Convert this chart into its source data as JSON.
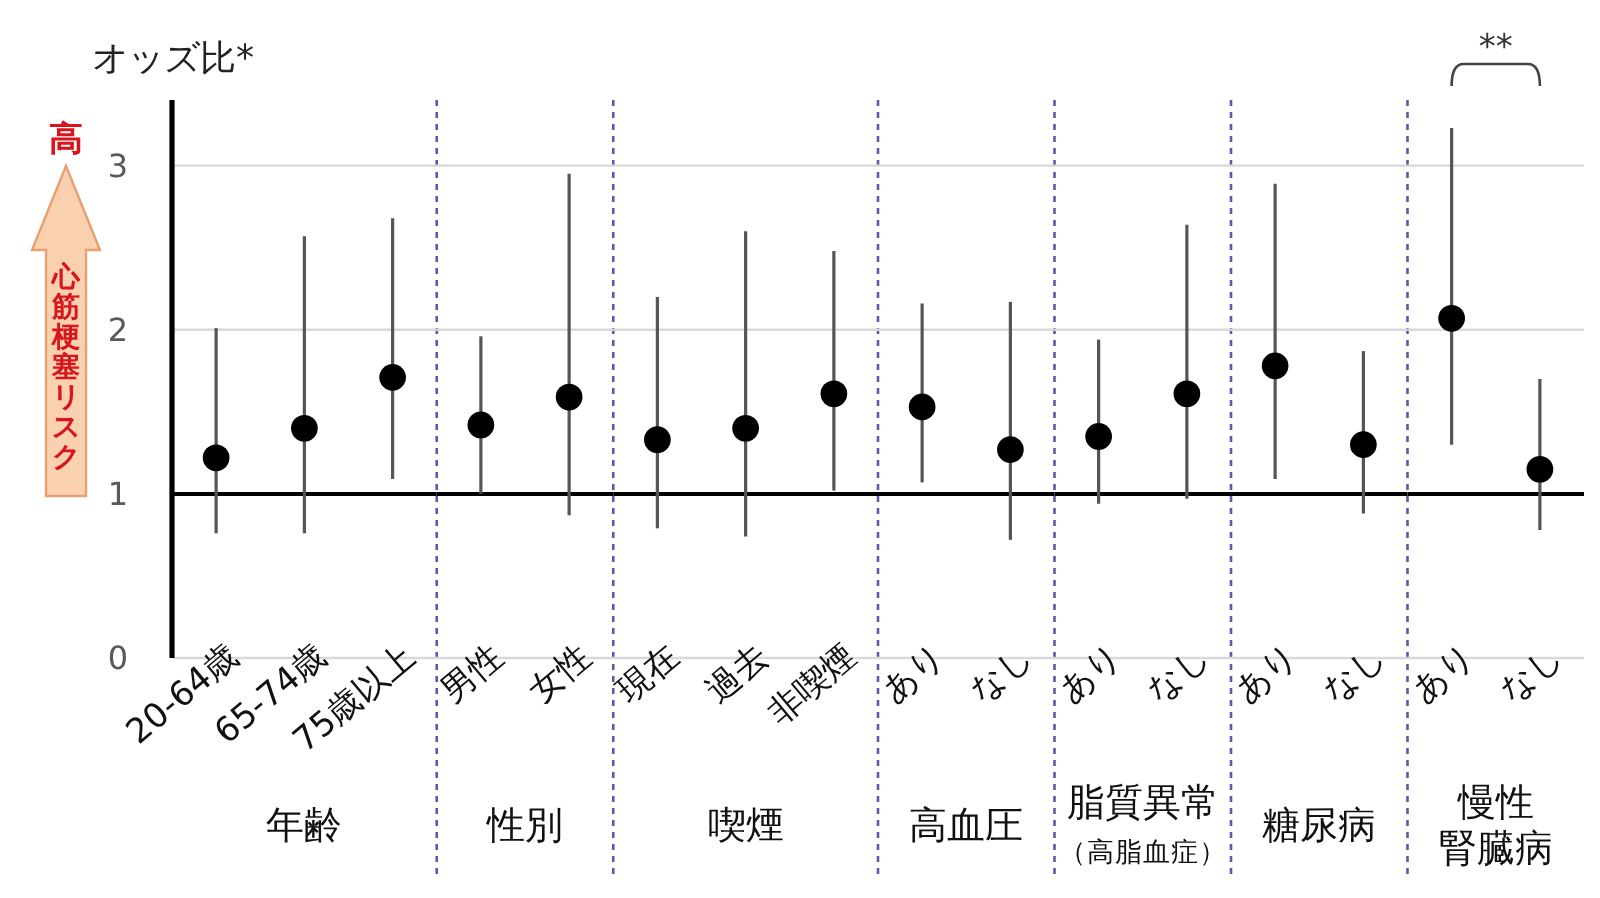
{
  "chart_data": [
    {
      "type": "scatter",
      "categories": [
        "20-64歳",
        "65-74歳",
        "75歳以上"
      ],
      "values": [
        1.22,
        1.4,
        1.71
      ],
      "errors": [
        [
          0.76,
          2.01
        ],
        [
          0.76,
          2.57
        ],
        [
          1.09,
          2.68
        ]
      ],
      "color": "#000000",
      "marker": "circle",
      "ylim": [
        0,
        3.4
      ],
      "yticks": [
        0,
        1,
        2,
        3
      ],
      "grid": "y",
      "ref_lines": [
        {
          "axis": "y",
          "value": 1,
          "color": "#000000"
        }
      ],
      "ylabel": "オッズ比*",
      "xlabel": "年齢",
      "annotations": [
        "高",
        "心筋梗塞リスク"
      ]
    },
    {
      "type": "scatter",
      "categories": [
        "男性",
        "女性"
      ],
      "values": [
        1.42,
        1.59
      ],
      "errors": [
        [
          1.0,
          1.96
        ],
        [
          0.87,
          2.95
        ]
      ],
      "color": "#000000",
      "marker": "circle",
      "ylim": [
        0,
        3.4
      ],
      "yticks": [
        0,
        1,
        2,
        3
      ],
      "grid": "y",
      "ref_lines": [
        {
          "axis": "y",
          "value": 1,
          "color": "#000000"
        }
      ],
      "xlabel": "性別",
      "tick_labels": "x"
    },
    {
      "type": "scatter",
      "categories": [
        "現在",
        "過去",
        "非喫煙"
      ],
      "values": [
        1.33,
        1.4,
        1.61
      ],
      "errors": [
        [
          0.79,
          2.2
        ],
        [
          0.74,
          2.6
        ],
        [
          1.02,
          2.48
        ]
      ],
      "color": "#000000",
      "marker": "circle",
      "ylim": [
        0,
        3.4
      ],
      "yticks": [
        0,
        1,
        2,
        3
      ],
      "grid": "y",
      "ref_lines": [
        {
          "axis": "y",
          "value": 1,
          "color": "#000000"
        }
      ],
      "xlabel": "喫煙",
      "tick_labels": "x"
    },
    {
      "type": "scatter",
      "categories": [
        "あり",
        "なし"
      ],
      "values": [
        1.53,
        1.27
      ],
      "errors": [
        [
          1.07,
          2.16
        ],
        [
          0.72,
          2.17
        ]
      ],
      "color": "#000000",
      "marker": "circle",
      "ylim": [
        0,
        3.4
      ],
      "yticks": [
        0,
        1,
        2,
        3
      ],
      "grid": "y",
      "ref_lines": [
        {
          "axis": "y",
          "value": 1,
          "color": "#000000"
        }
      ],
      "xlabel": "高血圧",
      "tick_labels": "x"
    },
    {
      "type": "scatter",
      "categories": [
        "あり",
        "なし"
      ],
      "values": [
        1.35,
        1.61
      ],
      "errors": [
        [
          0.94,
          1.94
        ],
        [
          0.97,
          2.64
        ]
      ],
      "color": "#000000",
      "marker": "circle",
      "ylim": [
        0,
        3.4
      ],
      "yticks": [
        0,
        1,
        2,
        3
      ],
      "grid": "y",
      "ref_lines": [
        {
          "axis": "y",
          "value": 1,
          "color": "#000000"
        }
      ],
      "xlabel": "脂質異常（高脂血症）",
      "tick_labels": "x"
    },
    {
      "type": "scatter",
      "categories": [
        "あり",
        "なし"
      ],
      "values": [
        1.78,
        1.3
      ],
      "errors": [
        [
          1.09,
          2.89
        ],
        [
          0.88,
          1.87
        ]
      ],
      "color": "#000000",
      "marker": "circle",
      "ylim": [
        0,
        3.4
      ],
      "yticks": [
        0,
        1,
        2,
        3
      ],
      "grid": "y",
      "ref_lines": [
        {
          "axis": "y",
          "value": 1,
          "color": "#000000"
        }
      ],
      "xlabel": "糖尿病",
      "tick_labels": "x"
    },
    {
      "type": "scatter",
      "categories": [
        "あり",
        "なし"
      ],
      "values": [
        2.07,
        1.15
      ],
      "errors": [
        [
          1.3,
          3.23
        ],
        [
          0.78,
          1.7
        ]
      ],
      "color": "#000000",
      "marker": "circle",
      "ylim": [
        0,
        3.4
      ],
      "yticks": [
        0,
        1,
        2,
        3
      ],
      "grid": "y",
      "ref_lines": [
        {
          "axis": "y",
          "value": 1,
          "color": "#000000"
        }
      ],
      "xlabel": "慢性腎臓病",
      "tick_labels": "x",
      "annotations": [
        "**"
      ]
    }
  ]
}
